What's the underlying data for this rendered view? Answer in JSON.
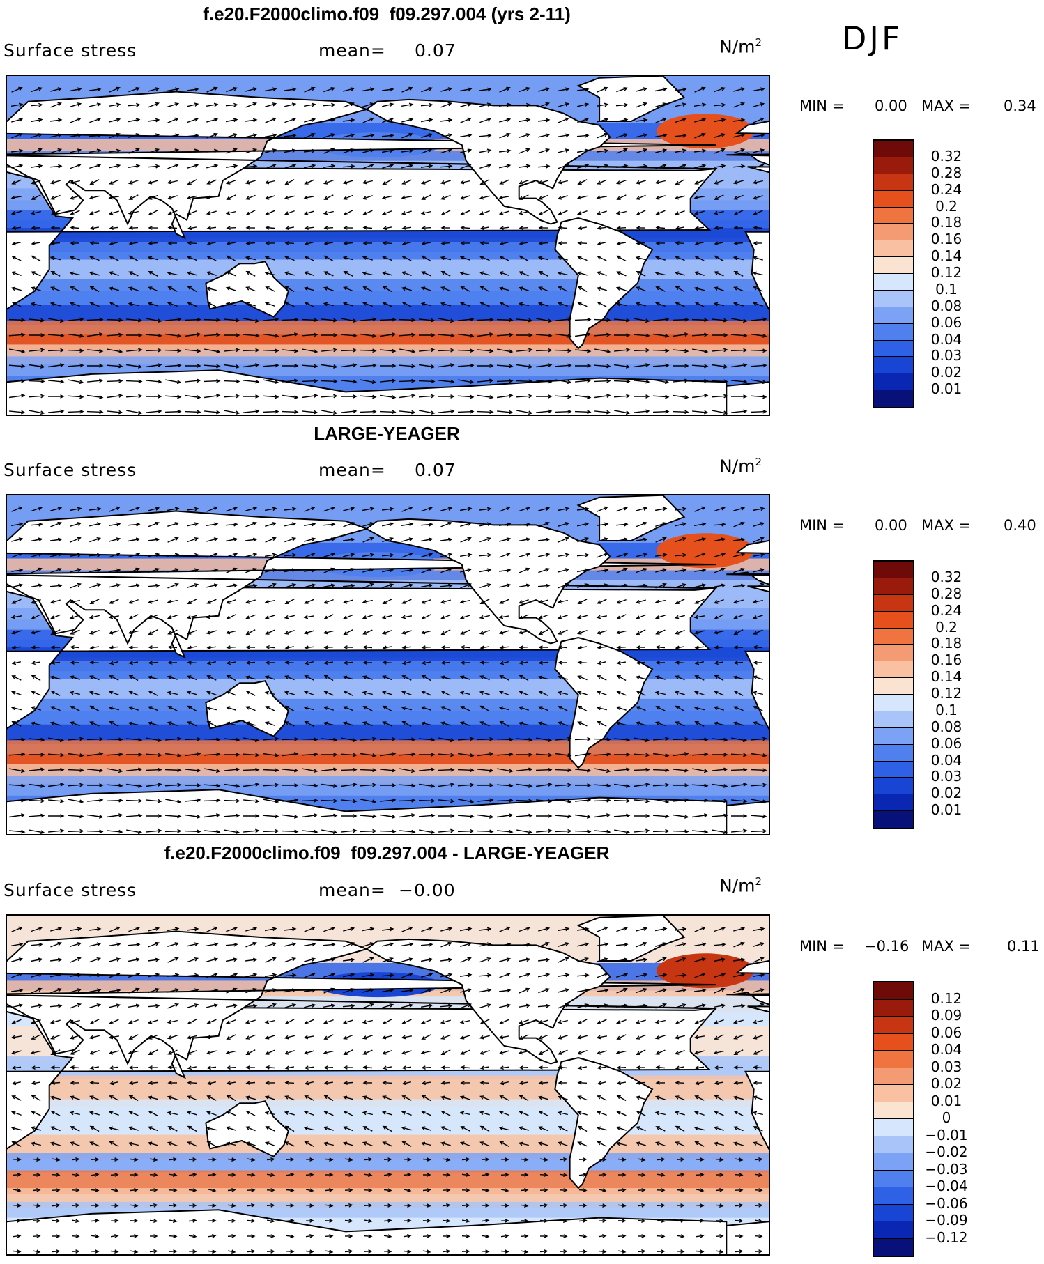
{
  "season": "DJF",
  "palette_pos": [
    "#08107a",
    "#0a27b3",
    "#1845d4",
    "#2e61e6",
    "#4f80ee",
    "#7ba2f4",
    "#a8c4f8",
    "#d6e6fc",
    "#fbe3d2",
    "#f9c1a1",
    "#f59b73",
    "#f0743f",
    "#e5501c",
    "#c73512",
    "#9a1a0c",
    "#6e0a08"
  ],
  "palette_diff": [
    "#08107a",
    "#0a27b3",
    "#1845d4",
    "#2e61e6",
    "#4f80ee",
    "#7ba2f4",
    "#a8c4f8",
    "#d6e6fc",
    "#fbe3d2",
    "#f9c1a1",
    "#f59b73",
    "#f0743f",
    "#e5501c",
    "#c73512",
    "#9a1a0c",
    "#6e0a08"
  ],
  "panels": [
    {
      "title": "f.e20.F2000climo.f09_f09.297.004 (yrs 2-11)",
      "variable": "Surface stress",
      "mean_label": "mean=",
      "mean_value": "0.07",
      "units": "N/m",
      "units_exp": "2",
      "min_label": "MIN =",
      "min_value": "0.00",
      "max_label": "MAX =",
      "max_value": "0.34",
      "colorbar_levels": [
        "0.32",
        "0.28",
        "0.24",
        "0.2",
        "0.18",
        "0.16",
        "0.14",
        "0.12",
        "0.1",
        "0.08",
        "0.06",
        "0.04",
        "0.03",
        "0.02",
        "0.01"
      ]
    },
    {
      "title": "LARGE-YEAGER",
      "variable": "Surface stress",
      "mean_label": "mean=",
      "mean_value": "0.07",
      "units": "N/m",
      "units_exp": "2",
      "min_label": "MIN =",
      "min_value": "0.00",
      "max_label": "MAX =",
      "max_value": "0.40",
      "colorbar_levels": [
        "0.32",
        "0.28",
        "0.24",
        "0.2",
        "0.18",
        "0.16",
        "0.14",
        "0.12",
        "0.1",
        "0.08",
        "0.06",
        "0.04",
        "0.03",
        "0.02",
        "0.01"
      ]
    },
    {
      "title": "f.e20.F2000climo.f09_f09.297.004 - LARGE-YEAGER",
      "variable": "Surface stress",
      "mean_label": "mean=",
      "mean_value": "−0.00",
      "units": "N/m",
      "units_exp": "2",
      "min_label": "MIN =",
      "min_value": "−0.16",
      "max_label": "MAX =",
      "max_value": "0.11",
      "colorbar_levels": [
        "0.12",
        "0.09",
        "0.06",
        "0.04",
        "0.03",
        "0.02",
        "0.01",
        "0",
        "−0.01",
        "−0.02",
        "−0.03",
        "−0.04",
        "−0.06",
        "−0.09",
        "−0.12"
      ]
    }
  ]
}
